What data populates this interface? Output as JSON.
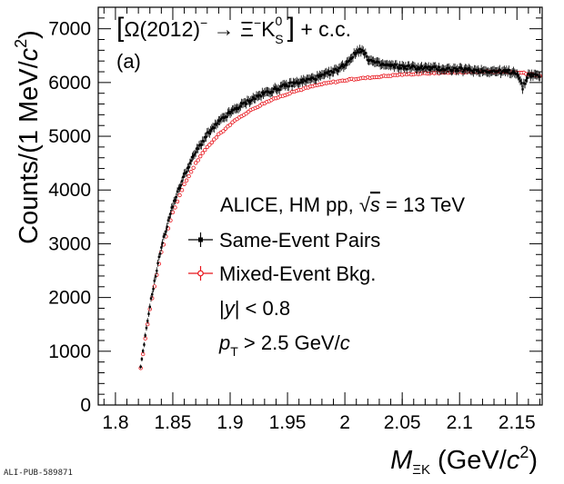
{
  "chart_data": {
    "type": "scatter",
    "title": "",
    "process": {
      "lbracket": "[",
      "omega": "Ω(2012)",
      "minus": "−",
      "arrow": " → ",
      "xi": "Ξ",
      "xi_charge": "−",
      "k": "K",
      "k_sup": "0",
      "k_sub": "S",
      "rbracket": "]",
      "cc": " + c.c."
    },
    "panel_label": "(a)",
    "info": {
      "collab": "ALICE, HM pp, ",
      "sqrt": "√",
      "s": "s",
      "energy": " = 13 TeV",
      "rapidity_pre": "|",
      "rapidity_y": "y",
      "rapidity_post": "| < 0.8",
      "pt_p": "p",
      "pt_sub": "T",
      "pt_rest": " > 2.5 GeV/",
      "pt_c": "c"
    },
    "xlabel": {
      "m": "M",
      "sub": "ΞK",
      "units_pre": " (GeV/",
      "c": "c",
      "sup": "2",
      "units_post": ")"
    },
    "ylabel": {
      "pre": "Counts/(1 MeV/",
      "c": "c",
      "sup": "2",
      "post": ")"
    },
    "xlim": [
      1.785,
      2.172
    ],
    "ylim": [
      0,
      7400
    ],
    "xticks": [
      "1.8",
      "1.85",
      "1.9",
      "1.95",
      "2",
      "2.05",
      "2.1",
      "2.15"
    ],
    "xtick_values": [
      1.8,
      1.85,
      1.9,
      1.95,
      2.0,
      2.05,
      2.1,
      2.15
    ],
    "yticks": [
      "0",
      "1000",
      "2000",
      "3000",
      "4000",
      "5000",
      "6000",
      "7000"
    ],
    "ytick_values": [
      0,
      1000,
      2000,
      3000,
      4000,
      5000,
      6000,
      7000
    ],
    "series": [
      {
        "name": "Same-Event Pairs",
        "color": "#000000",
        "marker": "square",
        "x": [
          1.822,
          1.83,
          1.84,
          1.85,
          1.86,
          1.87,
          1.88,
          1.89,
          1.9,
          1.91,
          1.92,
          1.93,
          1.94,
          1.95,
          1.96,
          1.97,
          1.98,
          1.99,
          2.0,
          2.005,
          2.01,
          2.013,
          2.016,
          2.02,
          2.025,
          2.03,
          2.04,
          2.05,
          2.06,
          2.07,
          2.08,
          2.09,
          2.1,
          2.11,
          2.12,
          2.13,
          2.14,
          2.15,
          2.155,
          2.16,
          2.17
        ],
        "y": [
          700,
          1850,
          2950,
          3720,
          4280,
          4710,
          5030,
          5260,
          5440,
          5580,
          5700,
          5800,
          5880,
          5950,
          6010,
          6060,
          6120,
          6200,
          6330,
          6450,
          6560,
          6620,
          6570,
          6450,
          6380,
          6340,
          6310,
          6290,
          6280,
          6270,
          6260,
          6250,
          6240,
          6230,
          6220,
          6210,
          6200,
          6190,
          5900,
          6150,
          6120
        ],
        "err": [
          40,
          60,
          70,
          75,
          80,
          85,
          85,
          85,
          85,
          85,
          85,
          85,
          85,
          85,
          85,
          85,
          85,
          85,
          85,
          85,
          85,
          85,
          85,
          85,
          85,
          85,
          85,
          85,
          85,
          85,
          85,
          85,
          85,
          85,
          85,
          85,
          85,
          85,
          85,
          85,
          85
        ]
      },
      {
        "name": "Mixed-Event Bkg.",
        "color": "#e8141b",
        "marker": "open-circle",
        "x": [
          1.822,
          1.83,
          1.84,
          1.85,
          1.86,
          1.87,
          1.88,
          1.89,
          1.9,
          1.91,
          1.92,
          1.93,
          1.94,
          1.95,
          1.96,
          1.97,
          1.98,
          1.99,
          2.0,
          2.01,
          2.02,
          2.03,
          2.04,
          2.05,
          2.06,
          2.07,
          2.08,
          2.09,
          2.1,
          2.11,
          2.12,
          2.13,
          2.14,
          2.15,
          2.16,
          2.17
        ],
        "y": [
          680,
          1780,
          2850,
          3580,
          4100,
          4500,
          4800,
          5030,
          5220,
          5380,
          5510,
          5620,
          5710,
          5790,
          5860,
          5920,
          5970,
          6010,
          6040,
          6070,
          6090,
          6110,
          6130,
          6150,
          6160,
          6170,
          6180,
          6190,
          6195,
          6200,
          6200,
          6200,
          6195,
          6185,
          6165,
          6130
        ],
        "err": [
          20,
          25,
          25,
          25,
          25,
          25,
          25,
          25,
          25,
          25,
          25,
          25,
          25,
          25,
          25,
          25,
          25,
          25,
          25,
          25,
          25,
          25,
          25,
          25,
          25,
          25,
          25,
          25,
          25,
          25,
          25,
          25,
          25,
          25,
          25,
          25
        ]
      }
    ],
    "legend_placement": "center-right",
    "grid": false
  },
  "footer": "ALI-PUB-589871"
}
